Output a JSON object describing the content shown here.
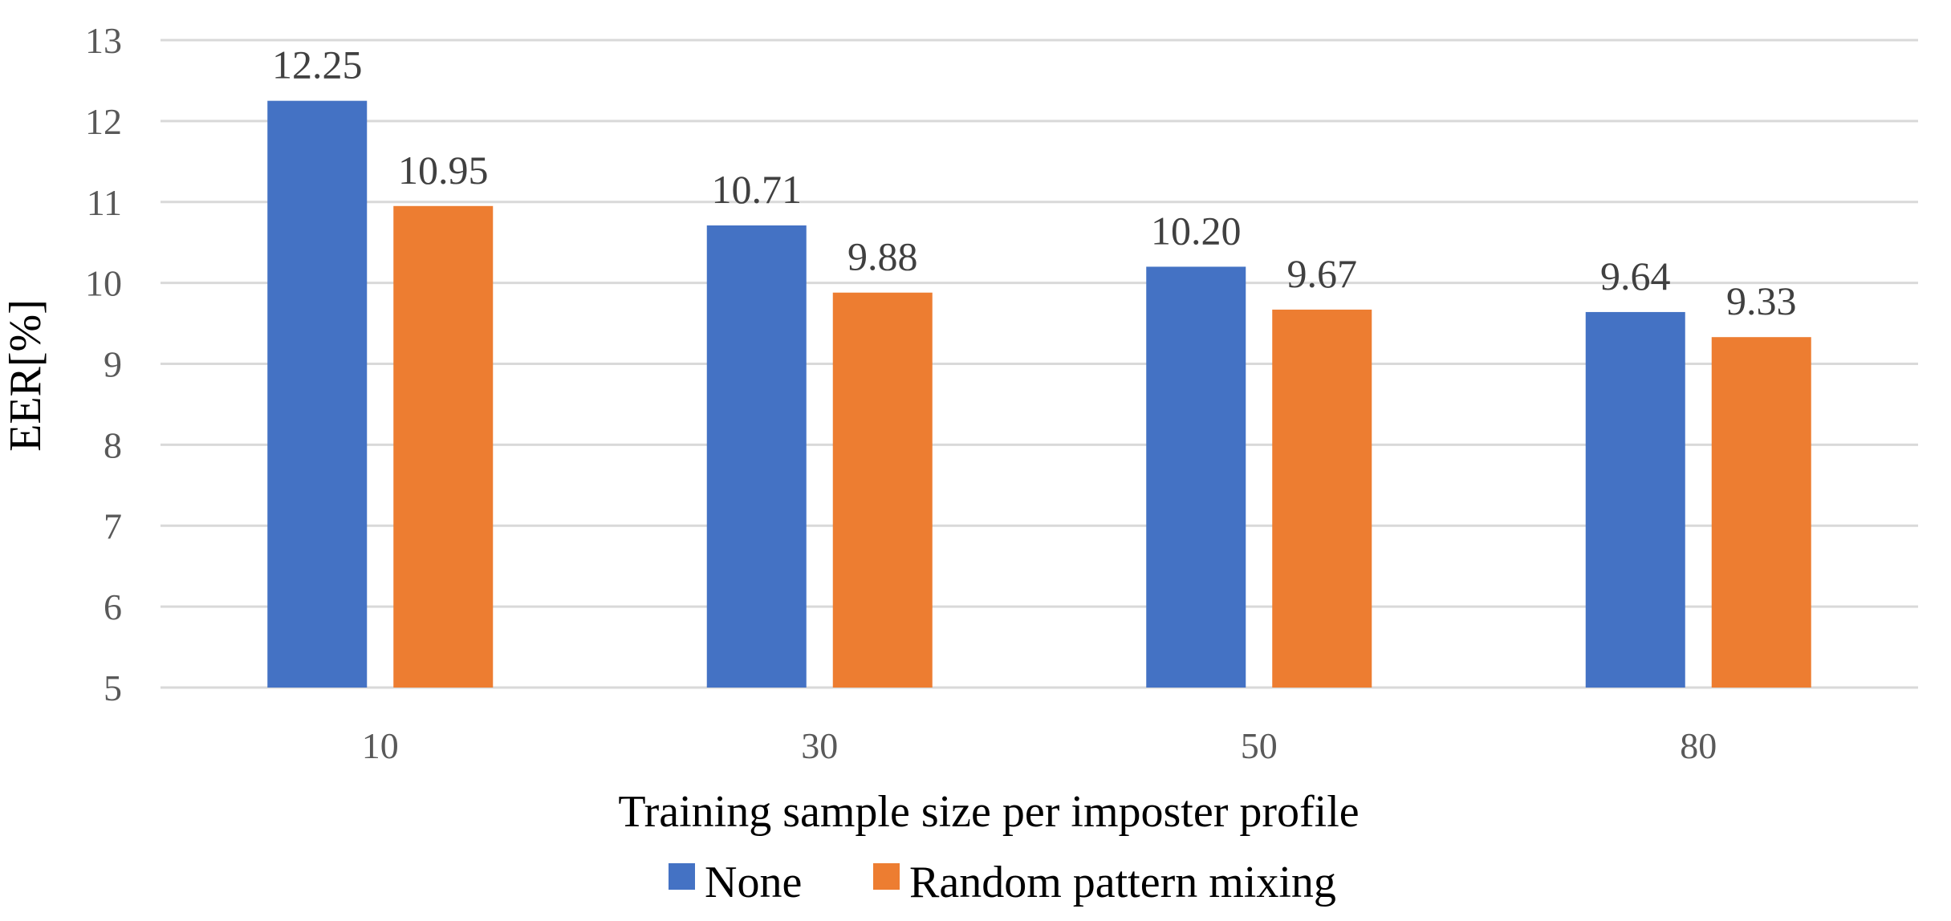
{
  "chart_data": {
    "type": "bar",
    "title": "",
    "xlabel": "Training sample size per imposter profile",
    "ylabel": "EER[%]",
    "categories": [
      "10",
      "30",
      "50",
      "80"
    ],
    "series": [
      {
        "name": "None",
        "color": "#4472c4",
        "values": [
          12.25,
          10.71,
          10.2,
          9.64
        ],
        "labels": [
          "12.25",
          "10.71",
          "10.20",
          "9.64"
        ]
      },
      {
        "name": "Random pattern mixing",
        "color": "#ed7d31",
        "values": [
          10.95,
          9.88,
          9.67,
          9.33
        ],
        "labels": [
          "10.95",
          "9.88",
          "9.67",
          "9.33"
        ]
      }
    ],
    "ylim": [
      5,
      13
    ],
    "yticks": [
      "5",
      "6",
      "7",
      "8",
      "9",
      "10",
      "11",
      "12",
      "13"
    ],
    "grid": "horizontal",
    "legend_position": "bottom-center"
  }
}
